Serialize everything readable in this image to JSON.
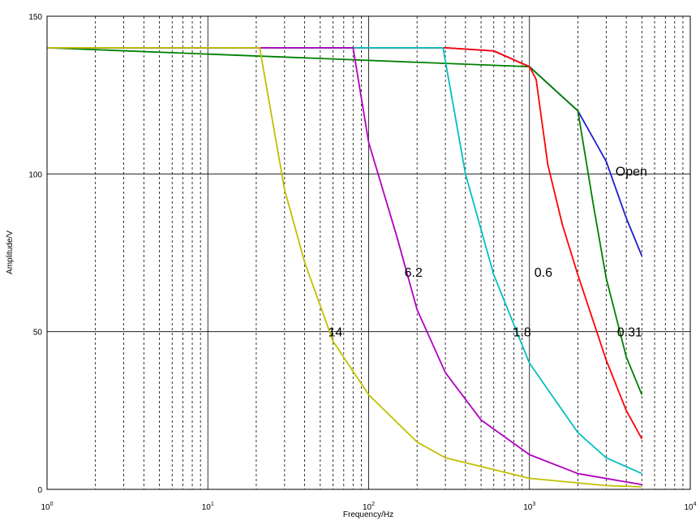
{
  "chart_data": {
    "type": "line",
    "xlabel": "Frequency/Hz",
    "ylabel": "Amplitude/V",
    "xscale": "log",
    "xlim": [
      1,
      10000
    ],
    "ylim": [
      0,
      150
    ],
    "grid": {
      "major": true,
      "minor_x": true
    },
    "x_ticks": [
      {
        "base": "10",
        "exp": "0"
      },
      {
        "base": "10",
        "exp": "1"
      },
      {
        "base": "10",
        "exp": "2"
      },
      {
        "base": "10",
        "exp": "3"
      },
      {
        "base": "10",
        "exp": "4"
      }
    ],
    "y_ticks": [
      "0",
      "50",
      "100",
      "150"
    ],
    "series": [
      {
        "name": "Open",
        "color": "#1f1fd0",
        "points": [
          [
            1,
            140
          ],
          [
            300,
            140
          ],
          [
            600,
            139
          ],
          [
            1000,
            134
          ],
          [
            2000,
            120
          ],
          [
            3000,
            104
          ],
          [
            4000,
            86
          ],
          [
            5000,
            74
          ]
        ]
      },
      {
        "name": "0.31",
        "color": "#008000",
        "points": [
          [
            1,
            140
          ],
          [
            1000,
            134
          ],
          [
            2000,
            120
          ],
          [
            2500,
            90
          ],
          [
            3000,
            67
          ],
          [
            4000,
            42
          ],
          [
            5000,
            30
          ]
        ]
      },
      {
        "name": "0.6",
        "color": "#ff0000",
        "points": [
          [
            1,
            140
          ],
          [
            300,
            140
          ],
          [
            600,
            139
          ],
          [
            1000,
            134
          ],
          [
            1100,
            130
          ],
          [
            1300,
            103
          ],
          [
            1600,
            84
          ],
          [
            2000,
            68
          ],
          [
            3000,
            41
          ],
          [
            4000,
            25
          ],
          [
            5000,
            16
          ]
        ]
      },
      {
        "name": "1.8",
        "color": "#00c0c0",
        "points": [
          [
            1,
            140
          ],
          [
            290,
            140
          ],
          [
            400,
            100
          ],
          [
            600,
            68
          ],
          [
            1000,
            40
          ],
          [
            2000,
            18
          ],
          [
            3000,
            10
          ],
          [
            5000,
            5
          ]
        ]
      },
      {
        "name": "6.2",
        "color": "#b000c0",
        "points": [
          [
            1,
            140
          ],
          [
            80,
            140
          ],
          [
            100,
            110
          ],
          [
            150,
            80
          ],
          [
            200,
            57
          ],
          [
            300,
            37
          ],
          [
            500,
            22
          ],
          [
            1000,
            11
          ],
          [
            2000,
            5
          ],
          [
            5000,
            1.5
          ]
        ]
      },
      {
        "name": "14",
        "color": "#c0c000",
        "points": [
          [
            1,
            140
          ],
          [
            21,
            140
          ],
          [
            30,
            95
          ],
          [
            40,
            72
          ],
          [
            60,
            47
          ],
          [
            100,
            30
          ],
          [
            200,
            15
          ],
          [
            300,
            10
          ],
          [
            1000,
            3.5
          ],
          [
            3000,
            1.2
          ],
          [
            5000,
            0.8
          ]
        ]
      }
    ],
    "annotations": [
      {
        "text": "Open",
        "x": 4300,
        "y": 101
      },
      {
        "text": "0.6",
        "x": 1220,
        "y": 69
      },
      {
        "text": "0.31",
        "x": 4200,
        "y": 50
      },
      {
        "text": "1.8",
        "x": 900,
        "y": 50
      },
      {
        "text": "6.2",
        "x": 190,
        "y": 69
      },
      {
        "text": "14",
        "x": 62,
        "y": 50
      }
    ]
  }
}
